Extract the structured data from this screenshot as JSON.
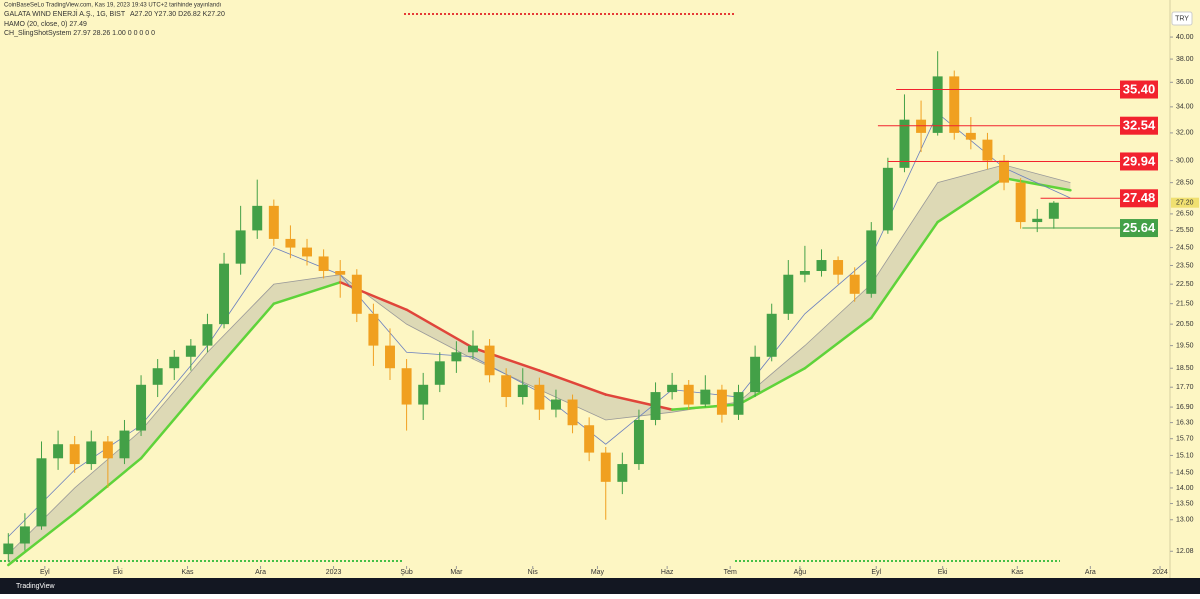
{
  "chart_data": {
    "type": "candlestick",
    "published": "CoinBaseSeLo TradingView.com, Kas 19, 2023 19:43 UTC+2 tarihinde yayınlandı",
    "title": "GALATA WIND ENERJİ A.Ş., 1G, BIST",
    "ohlc_text": "A27.20 Y27.30 D26.82 K27.20",
    "indicators": [
      "HAMO (20, close, 0) 27.49",
      "CH_SlingShotSystem 27.97 28.26 1.00 0 0 0 0 0"
    ],
    "currency": "TRY",
    "brand": "TradingView",
    "log_scale": true,
    "grid": false,
    "up_color": "#43a047",
    "down_color": "#f0a020",
    "x": [
      0,
      1,
      2,
      3,
      4,
      5,
      6,
      7,
      8,
      9,
      10,
      11,
      12,
      13,
      14,
      15,
      16,
      17,
      18,
      19,
      20,
      21,
      22,
      23,
      24,
      25,
      26,
      27,
      28,
      29,
      30,
      31,
      32,
      33,
      34,
      35,
      36,
      37,
      38,
      39,
      40,
      41,
      42,
      43,
      44,
      45,
      46,
      47,
      48,
      49,
      50,
      51,
      52,
      53,
      54,
      55,
      56,
      57,
      58,
      59,
      60,
      61,
      62,
      63
    ],
    "open": [
      12.0,
      12.3,
      12.8,
      15.0,
      15.5,
      14.8,
      15.6,
      15.0,
      16.0,
      17.8,
      18.5,
      19.0,
      19.5,
      20.5,
      23.6,
      25.5,
      27.0,
      25.0,
      24.5,
      24.0,
      23.2,
      23.0,
      21.0,
      19.5,
      18.5,
      17.0,
      17.8,
      18.8,
      19.2,
      19.5,
      18.2,
      17.3,
      17.8,
      16.8,
      17.2,
      16.2,
      15.2,
      14.2,
      14.8,
      16.4,
      17.5,
      17.8,
      17.0,
      17.6,
      16.6,
      17.5,
      19.0,
      21.0,
      23.0,
      23.2,
      23.8,
      23.0,
      22.0,
      25.5,
      29.5,
      33.0,
      32.0,
      36.5,
      32.0,
      31.5,
      30.0,
      28.5,
      26.0,
      26.2
    ],
    "high": [
      12.6,
      13.2,
      15.6,
      16.0,
      15.8,
      16.0,
      15.8,
      16.4,
      18.2,
      18.9,
      19.3,
      19.8,
      21.0,
      24.2,
      27.0,
      28.7,
      27.4,
      25.8,
      25.0,
      24.4,
      23.8,
      23.3,
      21.5,
      20.3,
      18.9,
      18.3,
      19.2,
      19.7,
      20.2,
      19.8,
      18.5,
      18.5,
      18.1,
      17.6,
      17.4,
      16.5,
      15.4,
      15.2,
      16.8,
      17.9,
      18.3,
      18.0,
      18.2,
      17.8,
      17.8,
      19.5,
      21.5,
      23.8,
      24.6,
      24.4,
      24.0,
      23.4,
      26.0,
      30.2,
      35.0,
      34.5,
      38.7,
      37.0,
      33.2,
      32.0,
      30.4,
      28.8,
      26.8,
      27.3
    ],
    "low": [
      11.8,
      12.1,
      12.7,
      14.6,
      14.5,
      14.6,
      14.0,
      14.8,
      15.8,
      17.3,
      18.0,
      18.4,
      19.2,
      20.3,
      23.0,
      25.0,
      24.6,
      23.9,
      23.5,
      22.8,
      21.8,
      20.6,
      18.6,
      18.0,
      16.0,
      16.4,
      17.5,
      18.3,
      18.9,
      17.9,
      16.9,
      17.0,
      16.4,
      16.5,
      15.9,
      14.9,
      13.0,
      13.8,
      14.6,
      16.2,
      17.2,
      16.8,
      16.9,
      16.3,
      16.4,
      17.3,
      18.8,
      20.7,
      22.6,
      22.9,
      22.5,
      21.6,
      21.8,
      25.3,
      29.2,
      30.6,
      31.8,
      31.5,
      30.8,
      29.4,
      28.0,
      25.6,
      25.4,
      25.6
    ],
    "close": [
      12.3,
      12.8,
      15.0,
      15.5,
      14.8,
      15.6,
      15.0,
      16.0,
      17.8,
      18.5,
      19.0,
      19.5,
      20.5,
      23.6,
      25.5,
      27.0,
      25.0,
      24.5,
      24.0,
      23.2,
      23.0,
      21.0,
      19.5,
      18.5,
      17.0,
      17.8,
      18.8,
      19.2,
      19.5,
      18.2,
      17.3,
      17.8,
      16.8,
      17.2,
      16.2,
      15.2,
      14.2,
      14.8,
      16.4,
      17.5,
      17.8,
      17.0,
      17.6,
      16.6,
      17.5,
      19.0,
      21.0,
      23.0,
      23.2,
      23.8,
      23.0,
      22.0,
      25.5,
      29.5,
      33.0,
      32.0,
      36.5,
      32.0,
      31.5,
      30.0,
      28.5,
      26.0,
      26.2,
      27.2
    ],
    "ribbon": {
      "x": [
        0,
        4,
        8,
        12,
        16,
        20,
        24,
        28,
        32,
        36,
        40,
        44,
        48,
        52,
        56,
        60,
        64
      ],
      "fast": [
        12.0,
        14.0,
        16.0,
        19.2,
        22.5,
        23.0,
        20.5,
        18.9,
        17.6,
        16.4,
        16.7,
        17.1,
        19.5,
        22.5,
        28.5,
        29.7,
        28.5
      ],
      "slow": [
        11.7,
        13.2,
        15.0,
        18.0,
        21.5,
        22.6,
        21.2,
        19.4,
        18.4,
        17.4,
        16.8,
        17.0,
        18.5,
        20.8,
        26.0,
        28.8,
        28.0
      ],
      "up_color": "#5fd33a",
      "down_color": "#e0453a"
    },
    "ma": {
      "x": [
        0,
        4,
        8,
        12,
        16,
        20,
        24,
        28,
        32,
        36,
        40,
        44,
        48,
        52,
        56,
        60,
        64
      ],
      "values": [
        12.5,
        14.6,
        16.2,
        19.5,
        24.5,
        23.0,
        19.2,
        19.0,
        17.5,
        15.5,
        17.6,
        17.3,
        21.0,
        24.0,
        33.5,
        29.5,
        27.5
      ],
      "color": "#6a7fbf"
    },
    "levels": [
      {
        "value": 35.4,
        "label": "35.40",
        "x_start": 53.5,
        "color": "#f2222e"
      },
      {
        "value": 32.54,
        "label": "32.54",
        "x_start": 52.4,
        "color": "#f2222e"
      },
      {
        "value": 29.94,
        "label": "29.94",
        "x_start": 53,
        "color": "#f2222e"
      },
      {
        "value": 27.48,
        "label": "27.48",
        "x_start": 62.2,
        "color": "#f2222e"
      },
      {
        "value": 25.64,
        "label": "25.64",
        "x_start": 61.1,
        "color": "#43a047"
      }
    ],
    "last_price": {
      "value": 27.2,
      "label": "27.20"
    },
    "xlim": [
      -0.5,
      70
    ],
    "xticks": [
      {
        "value": 2.2,
        "label": "Eyl"
      },
      {
        "value": 6.6,
        "label": "Eki"
      },
      {
        "value": 10.8,
        "label": "Kas"
      },
      {
        "value": 15.2,
        "label": "Ara"
      },
      {
        "value": 19.6,
        "label": "2023"
      },
      {
        "value": 24.0,
        "label": "Şub"
      },
      {
        "value": 27.0,
        "label": "Mar"
      },
      {
        "value": 31.6,
        "label": "Nis"
      },
      {
        "value": 35.5,
        "label": "May"
      },
      {
        "value": 39.7,
        "label": "Haz"
      },
      {
        "value": 43.5,
        "label": "Tem"
      },
      {
        "value": 47.7,
        "label": "Ağu"
      },
      {
        "value": 52.3,
        "label": "Eyl"
      },
      {
        "value": 56.3,
        "label": "Eki"
      },
      {
        "value": 60.8,
        "label": "Kas"
      },
      {
        "value": 65.2,
        "label": "Ara"
      },
      {
        "value": 69.4,
        "label": "2024"
      }
    ],
    "ylim": [
      11.7,
      42.8
    ],
    "yticks": [
      {
        "value": 40,
        "label": "40.00"
      },
      {
        "value": 38,
        "label": "38.00"
      },
      {
        "value": 36,
        "label": "36.00"
      },
      {
        "value": 34,
        "label": "34.00"
      },
      {
        "value": 32,
        "label": "32.00"
      },
      {
        "value": 30,
        "label": "30.00"
      },
      {
        "value": 28.5,
        "label": "28.50"
      },
      {
        "value": 26.5,
        "label": "26.50"
      },
      {
        "value": 25.5,
        "label": "25.50"
      },
      {
        "value": 24.5,
        "label": "24.50"
      },
      {
        "value": 23.5,
        "label": "23.50"
      },
      {
        "value": 22.5,
        "label": "22.50"
      },
      {
        "value": 21.5,
        "label": "21.50"
      },
      {
        "value": 20.5,
        "label": "20.50"
      },
      {
        "value": 19.5,
        "label": "19.50"
      },
      {
        "value": 18.5,
        "label": "18.50"
      },
      {
        "value": 17.7,
        "label": "17.70"
      },
      {
        "value": 16.9,
        "label": "16.90"
      },
      {
        "value": 16.3,
        "label": "16.30"
      },
      {
        "value": 15.7,
        "label": "15.70"
      },
      {
        "value": 15.1,
        "label": "15.10"
      },
      {
        "value": 14.5,
        "label": "14.50"
      },
      {
        "value": 14,
        "label": "14.00"
      },
      {
        "value": 13.5,
        "label": "13.50"
      },
      {
        "value": 13,
        "label": "13.00"
      },
      {
        "value": 12.08,
        "label": "12.08"
      }
    ]
  }
}
